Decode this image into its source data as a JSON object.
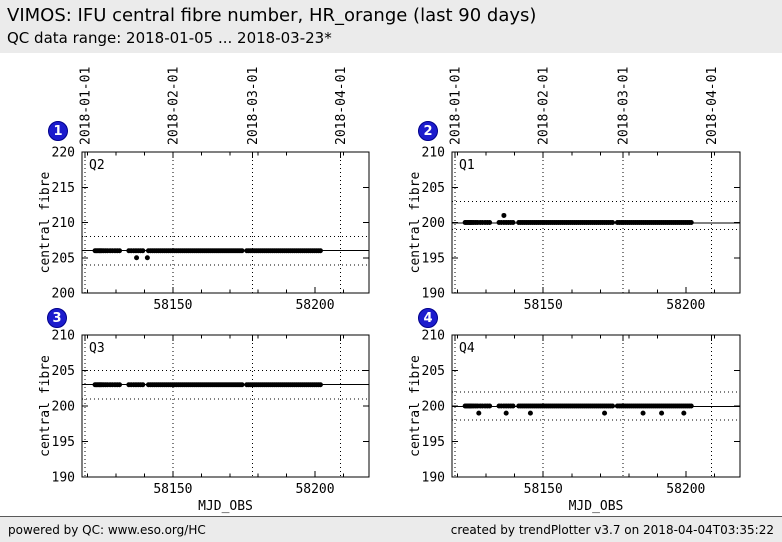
{
  "header": {
    "title": "VIMOS: IFU central fibre number, HR_orange (last 90 days)",
    "qc_data_range": "QC data range: 2018-01-05 ... 2018-03-23*"
  },
  "footer": {
    "powered_by": "powered by QC: www.eso.org/HC",
    "created_by": "created by trendPlotter v3.7 on 2018-04-04T03:35:22"
  },
  "colors": {
    "badge_blue": "#1c1ccd",
    "point_black": "#000000",
    "bar_gray": "#ebebeb",
    "plot_bg": "#ffffff"
  },
  "chart_data": {
    "type": "scatter",
    "title": "VIMOS: IFU central fibre number, HR_orange (last 90 days)",
    "xlabel": "MJD_OBS",
    "ylabel": "central fibre",
    "xlim": [
      58118,
      58219
    ],
    "xticks": [
      58150,
      58200
    ],
    "xtick_minor_step": 10,
    "grid": "dotted vertical lines at month boundaries; dotted horizontal threshold lines; solid mean line",
    "date_ticks": [
      {
        "mjd": 58119,
        "label": "2018-01-01"
      },
      {
        "mjd": 58150,
        "label": "2018-02-01"
      },
      {
        "mjd": 58178,
        "label": "2018-03-01"
      },
      {
        "mjd": 58209,
        "label": "2018-04-01"
      }
    ],
    "mjd": [
      58122.6,
      58123.1,
      58123.6,
      58124.1,
      58124.5,
      58125.0,
      58125.6,
      58126.3,
      58127.0,
      58127.9,
      58128.7,
      58129.6,
      58130.4,
      58131.2,
      58134.5,
      58135.3,
      58136.2,
      58137.0,
      58137.8,
      58138.6,
      58139.4,
      58141.4,
      58142.1,
      58142.8,
      58143.5,
      58144.2,
      58144.9,
      58145.6,
      58146.3,
      58147.0,
      58147.7,
      58148.4,
      58149.1,
      58149.8,
      58150.5,
      58151.2,
      58151.9,
      58152.6,
      58153.3,
      58154.0,
      58154.7,
      58155.4,
      58156.1,
      58156.8,
      58157.5,
      58158.2,
      58158.9,
      58159.6,
      58160.3,
      58161.0,
      58161.7,
      58162.4,
      58163.1,
      58163.8,
      58164.5,
      58165.2,
      58165.9,
      58166.6,
      58167.3,
      58168.0,
      58168.7,
      58169.4,
      58170.1,
      58170.8,
      58171.5,
      58172.2,
      58172.9,
      58173.6,
      58174.3,
      58176.0,
      58176.7,
      58177.4,
      58178.1,
      58178.8,
      58179.5,
      58180.2,
      58180.9,
      58181.6,
      58182.3,
      58183.0,
      58183.7,
      58184.4,
      58185.1,
      58185.8,
      58186.5,
      58187.2,
      58187.9,
      58188.6,
      58189.3,
      58190.0,
      58190.7,
      58191.4,
      58192.1,
      58192.8,
      58193.5,
      58194.2,
      58194.9,
      58195.6,
      58196.3,
      58197.0,
      58197.7,
      58198.4,
      58199.1,
      58199.8,
      58200.5,
      58201.2,
      58201.9
    ],
    "panels": [
      {
        "n": 1,
        "key": "Q2",
        "value": 206,
        "ylim": [
          200,
          220
        ],
        "ytick_step": 5,
        "mean": 206.0,
        "thresholds": [
          204,
          208
        ],
        "outliers": [
          [
            58137.2,
            205
          ],
          [
            58141.0,
            205
          ]
        ]
      },
      {
        "n": 2,
        "key": "Q1",
        "value": 200,
        "ylim": [
          190,
          210
        ],
        "ytick_step": 5,
        "mean": 199.95,
        "thresholds": [
          199,
          203
        ],
        "outliers": [
          [
            58136.2,
            201
          ]
        ]
      },
      {
        "n": 3,
        "key": "Q3",
        "value": 203,
        "ylim": [
          190,
          210
        ],
        "ytick_step": 5,
        "mean": 203.0,
        "thresholds": [
          201,
          205
        ],
        "outliers": []
      },
      {
        "n": 4,
        "key": "Q4",
        "value": 200,
        "ylim": [
          190,
          210
        ],
        "ytick_step": 5,
        "mean": 199.9,
        "thresholds": [
          198,
          202
        ],
        "outliers": [
          [
            58127.4,
            199
          ],
          [
            58137.0,
            199
          ],
          [
            58145.5,
            199
          ],
          [
            58171.5,
            199
          ],
          [
            58185.0,
            199
          ],
          [
            58191.5,
            199
          ],
          [
            58199.3,
            199
          ]
        ]
      }
    ]
  }
}
